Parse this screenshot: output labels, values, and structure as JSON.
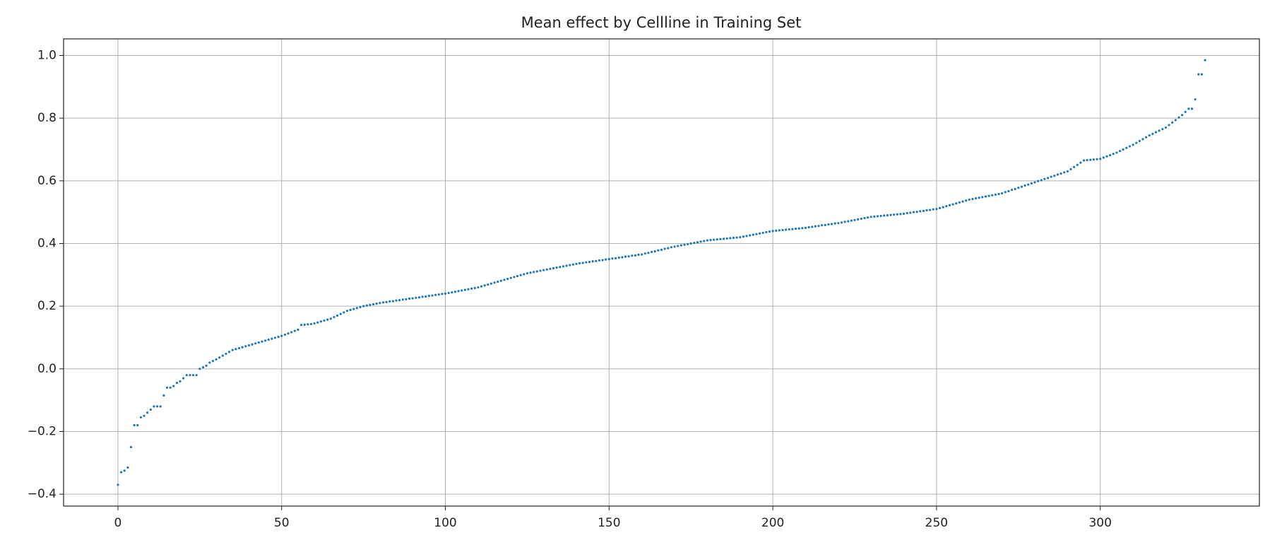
{
  "chart_data": {
    "type": "scatter",
    "title": "Mean effect by Cellline in Training Set",
    "color": "#1f77b4",
    "grid": true,
    "xlim": [
      -16.6,
      348.6
    ],
    "xticks": [
      0,
      50,
      100,
      150,
      200,
      250,
      300
    ],
    "ylim": [
      -0.438,
      1.053
    ],
    "yticks": [
      {
        "value": -0.4,
        "label": "−0.4"
      },
      {
        "value": -0.2,
        "label": "−0.2"
      },
      {
        "value": 0,
        "label": "0.0"
      },
      0.2,
      0.4,
      0.6,
      0.8,
      {
        "value": 1,
        "label": "1.0"
      }
    ],
    "values": [
      -0.37,
      -0.33,
      -0.325,
      -0.315,
      -0.25,
      -0.18,
      -0.18,
      -0.155,
      -0.15,
      -0.14,
      -0.13,
      -0.12,
      -0.12,
      -0.12,
      -0.085,
      -0.06,
      -0.06,
      -0.055,
      -0.045,
      -0.04,
      -0.03,
      -0.02,
      -0.02,
      -0.02,
      -0.02,
      0,
      0.005,
      0.01,
      0.02,
      0.025,
      0.03,
      0.036,
      0.042,
      0.048,
      0.054,
      0.06,
      0.063,
      0.066,
      0.069,
      0.072,
      0.075,
      0.078,
      0.081,
      0.084,
      0.087,
      0.09,
      0.093,
      0.096,
      0.099,
      0.102,
      0.105,
      0.109,
      0.113,
      0.117,
      0.121,
      0.125,
      0.14,
      0.141,
      0.142,
      0.143,
      0.145,
      0.148,
      0.151,
      0.154,
      0.157,
      0.16,
      0.165,
      0.17,
      0.175,
      0.18,
      0.185,
      0.188,
      0.191,
      0.194,
      0.197,
      0.2,
      0.202,
      0.204,
      0.206,
      0.208,
      0.21,
      0.212,
      0.213,
      0.215,
      0.216,
      0.218,
      0.219,
      0.221,
      0.222,
      0.224,
      0.225,
      0.227,
      0.228,
      0.23,
      0.231,
      0.233,
      0.234,
      0.236,
      0.237,
      0.239,
      0.24,
      0.242,
      0.244,
      0.246,
      0.248,
      0.25,
      0.252,
      0.254,
      0.256,
      0.258,
      0.26,
      0.263,
      0.266,
      0.269,
      0.272,
      0.275,
      0.278,
      0.281,
      0.284,
      0.287,
      0.29,
      0.293,
      0.296,
      0.299,
      0.302,
      0.305,
      0.307,
      0.309,
      0.311,
      0.313,
      0.315,
      0.317,
      0.319,
      0.321,
      0.323,
      0.325,
      0.327,
      0.329,
      0.331,
      0.333,
      0.335,
      0.337,
      0.338,
      0.34,
      0.341,
      0.343,
      0.344,
      0.346,
      0.347,
      0.349,
      0.35,
      0.352,
      0.353,
      0.355,
      0.356,
      0.358,
      0.359,
      0.361,
      0.362,
      0.364,
      0.365,
      0.368,
      0.37,
      0.373,
      0.375,
      0.378,
      0.38,
      0.383,
      0.385,
      0.388,
      0.39,
      0.392,
      0.394,
      0.396,
      0.398,
      0.4,
      0.402,
      0.404,
      0.406,
      0.408,
      0.41,
      0.411,
      0.412,
      0.413,
      0.414,
      0.415,
      0.416,
      0.417,
      0.418,
      0.419,
      0.42,
      0.422,
      0.424,
      0.426,
      0.428,
      0.43,
      0.432,
      0.434,
      0.436,
      0.438,
      0.44,
      0.441,
      0.442,
      0.443,
      0.444,
      0.445,
      0.446,
      0.447,
      0.448,
      0.449,
      0.45,
      0.452,
      0.453,
      0.455,
      0.456,
      0.458,
      0.459,
      0.461,
      0.462,
      0.464,
      0.465,
      0.467,
      0.469,
      0.471,
      0.473,
      0.475,
      0.477,
      0.479,
      0.481,
      0.483,
      0.485,
      0.486,
      0.487,
      0.488,
      0.489,
      0.49,
      0.491,
      0.492,
      0.493,
      0.494,
      0.495,
      0.497,
      0.498,
      0.5,
      0.501,
      0.503,
      0.504,
      0.506,
      0.507,
      0.509,
      0.51,
      0.513,
      0.516,
      0.519,
      0.522,
      0.525,
      0.528,
      0.531,
      0.534,
      0.537,
      0.54,
      0.542,
      0.544,
      0.546,
      0.548,
      0.55,
      0.552,
      0.554,
      0.556,
      0.558,
      0.56,
      0.564,
      0.567,
      0.571,
      0.574,
      0.578,
      0.581,
      0.585,
      0.588,
      0.592,
      0.595,
      0.599,
      0.602,
      0.606,
      0.609,
      0.613,
      0.616,
      0.62,
      0.623,
      0.627,
      0.63,
      0.637,
      0.644,
      0.651,
      0.658,
      0.665,
      0.666,
      0.667,
      0.668,
      0.669,
      0.67,
      0.674,
      0.678,
      0.682,
      0.686,
      0.69,
      0.695,
      0.7,
      0.705,
      0.71,
      0.715,
      0.721,
      0.727,
      0.733,
      0.739,
      0.745,
      0.75,
      0.755,
      0.76,
      0.765,
      0.77,
      0.778,
      0.786,
      0.794,
      0.802,
      0.81,
      0.82,
      0.83,
      0.83,
      0.86,
      0.94,
      0.94,
      0.985
    ]
  }
}
